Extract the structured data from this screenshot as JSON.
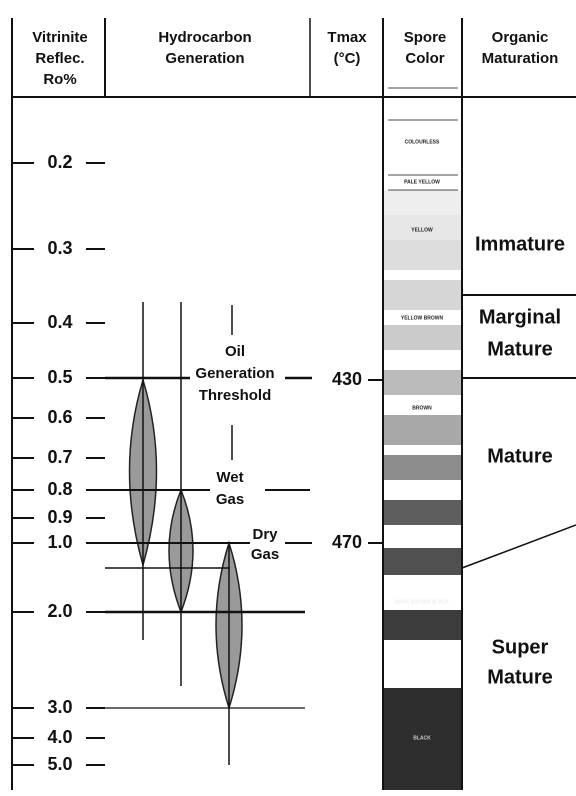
{
  "headers": [
    {
      "lines": [
        "Vitrinite",
        "Reflec.",
        "Ro%"
      ]
    },
    {
      "lines": [
        "Hydrocarbon",
        "Generation"
      ]
    },
    {
      "lines": [
        "Tmax",
        "(°C)"
      ]
    },
    {
      "lines": [
        "Spore",
        "Color"
      ]
    },
    {
      "lines": [
        "Organic",
        "Maturation"
      ]
    }
  ],
  "ro_labels": [
    "0.2",
    "0.3",
    "0.4",
    "0.5",
    "0.6",
    "0.7",
    "0.8",
    "0.9",
    "1.0",
    "2.0",
    "3.0",
    "4.0",
    "5.0"
  ],
  "tmax_labels": [
    "430",
    "470"
  ],
  "hydrocarbon": {
    "oil": [
      "Oil",
      "Generation",
      "Threshold"
    ],
    "wet": [
      "Wet",
      "Gas"
    ],
    "dry": [
      "Dry",
      "Gas"
    ]
  },
  "spore_colors": [
    "COLOURLESS",
    "PALE YELLOW",
    "YELLOW",
    "YELLOW BROWN",
    "BROWN",
    "DARK BROWN BLACK",
    "BLACK"
  ],
  "maturation": [
    {
      "lines": [
        "Immature"
      ]
    },
    {
      "lines": [
        "Marginal",
        "Mature"
      ]
    },
    {
      "lines": [
        "Mature"
      ]
    },
    {
      "lines": [
        "Super",
        "Mature"
      ]
    }
  ]
}
